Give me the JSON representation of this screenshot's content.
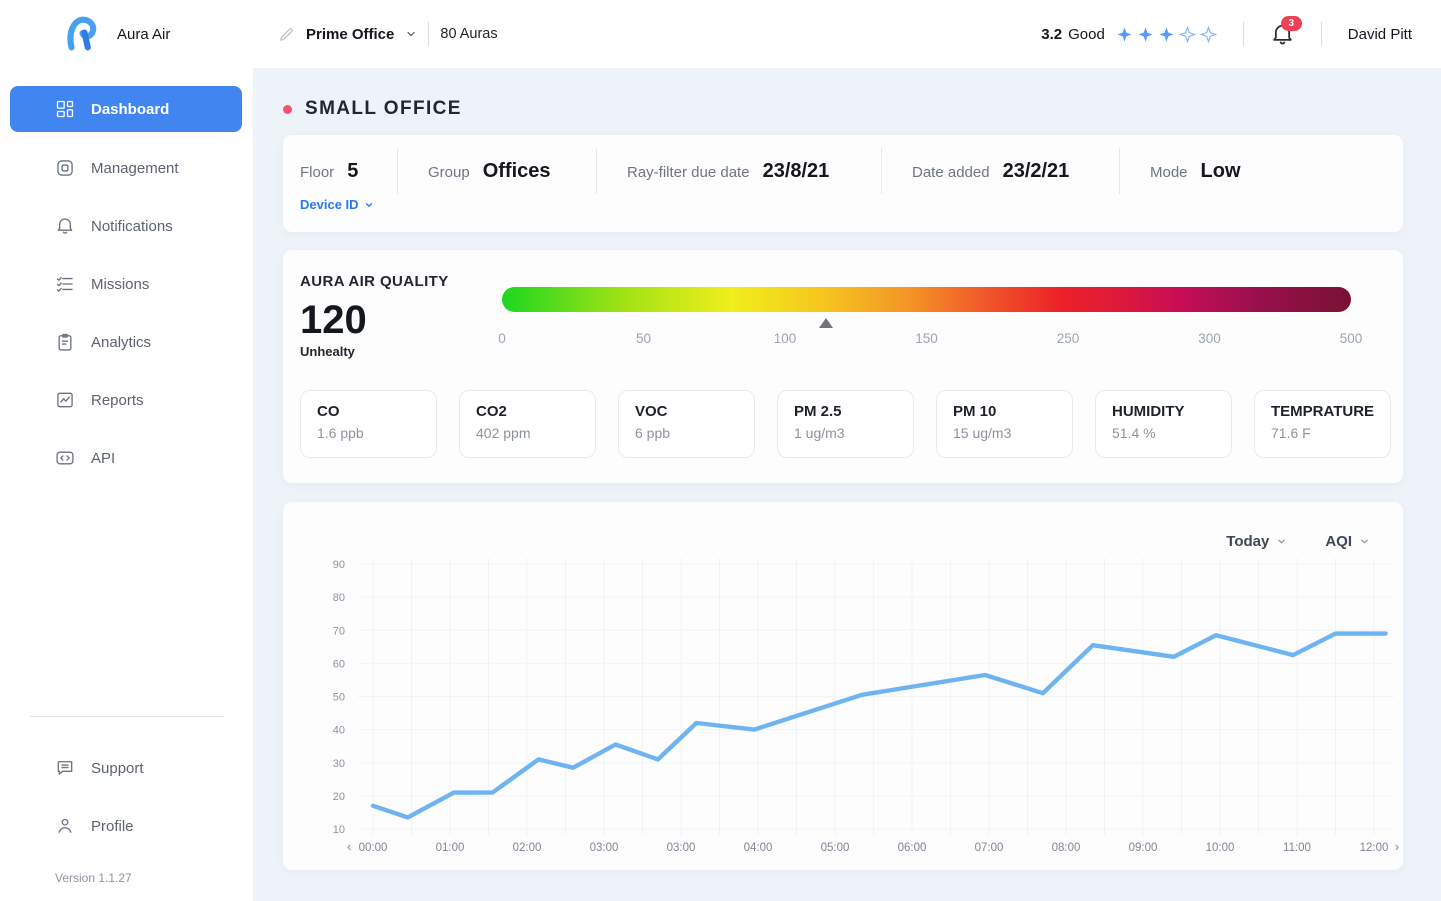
{
  "colors": {
    "accent_blue": "#4186f0",
    "line_blue": "#6fb4f2",
    "badge_red": "#ef4056",
    "title_dot_red": "#f2536d",
    "device_id_blue": "#2979f2",
    "star_blue": "#5b9bf8",
    "page_bg": "#eef3f9"
  },
  "header": {
    "brand": "Aura Air",
    "site": {
      "name": "Prime Office"
    },
    "device_count": "80 Auras",
    "score": {
      "value": "3.2",
      "label": "Good",
      "stars_filled": 3,
      "stars_total": 5
    },
    "notifications": {
      "badge": "3"
    },
    "user": {
      "name": "David Pitt"
    }
  },
  "sidebar": {
    "items": [
      {
        "label": "Dashboard",
        "icon": "dashboard",
        "active": true
      },
      {
        "label": "Management",
        "icon": "management",
        "active": false
      },
      {
        "label": "Notifications",
        "icon": "bell",
        "active": false
      },
      {
        "label": "Missions",
        "icon": "missions",
        "active": false
      },
      {
        "label": "Analytics",
        "icon": "analytics",
        "active": false
      },
      {
        "label": "Reports",
        "icon": "reports",
        "active": false
      },
      {
        "label": "API",
        "icon": "api",
        "active": false
      }
    ],
    "footer_items": [
      {
        "label": "Support",
        "icon": "support"
      },
      {
        "label": "Profile",
        "icon": "profile"
      }
    ],
    "version": "Version 1.1.27"
  },
  "page": {
    "title": "SMALL OFFICE",
    "info": {
      "fields": [
        {
          "label": "Floor",
          "value": "5"
        },
        {
          "label": "Group",
          "value": "Offices"
        },
        {
          "label": "Ray-filter due date",
          "value": "23/8/21"
        },
        {
          "label": "Date added",
          "value": "23/2/21"
        },
        {
          "label": "Mode",
          "value": "Low"
        }
      ],
      "device_id_label": "Device ID"
    },
    "aqi": {
      "section_title": "AURA AIR QUALITY",
      "value": "120",
      "status": "Unhealty",
      "scale_labels": [
        "0",
        "50",
        "100",
        "150",
        "250",
        "300",
        "500"
      ],
      "marker_percent": 38.2,
      "gradient_stops": [
        "#1ed621 0%",
        "#9fe214 14%",
        "#f0ee1b 27%",
        "#f6c51f 38%",
        "#f49426 48%",
        "#f1562a 57%",
        "#ec2028 66%",
        "#e01a39 72%",
        "#c70d56 80%",
        "#99104d 89%",
        "#7a1134 100%"
      ],
      "metrics": [
        {
          "name": "CO",
          "value": "1.6 ppb"
        },
        {
          "name": "CO2",
          "value": "402 ppm"
        },
        {
          "name": "VOC",
          "value": "6 ppb"
        },
        {
          "name": "PM 2.5",
          "value": "1 ug/m3"
        },
        {
          "name": "PM 10",
          "value": "15 ug/m3"
        },
        {
          "name": "HUMIDITY",
          "value": "51.4 %"
        },
        {
          "name": "TEMPRATURE",
          "value": "71.6 F"
        }
      ]
    },
    "chart_controls": {
      "range": "Today",
      "metric": "AQI"
    }
  },
  "chart_data": {
    "type": "line",
    "title": "AQI - Today",
    "x_ticks": [
      "00:00",
      "01:00",
      "02:00",
      "03:00",
      "03:00",
      "04:00",
      "05:00",
      "06:00",
      "07:00",
      "08:00",
      "09:00",
      "10:00",
      "11:00",
      "12:00"
    ],
    "y_ticks": [
      90,
      80,
      70,
      60,
      50,
      40,
      30,
      20,
      10
    ],
    "ylim": [
      10,
      90
    ],
    "grid": true,
    "legend": "none",
    "nav_prev": "‹",
    "nav_next": "›",
    "series": [
      {
        "name": "AQI",
        "color": "#6fb4f2",
        "points_x_tick_index": [
          [
            0,
            17
          ],
          [
            0.45,
            13.5
          ],
          [
            1.05,
            21
          ],
          [
            1.55,
            21
          ],
          [
            2.15,
            31
          ],
          [
            2.6,
            28.5
          ],
          [
            3.15,
            35.5
          ],
          [
            3.7,
            31
          ],
          [
            4.2,
            42
          ],
          [
            4.95,
            40
          ],
          [
            6.35,
            50.5
          ],
          [
            7.95,
            56.5
          ],
          [
            8.7,
            51
          ],
          [
            9.35,
            65.5
          ],
          [
            10.4,
            62
          ],
          [
            10.95,
            68.5
          ],
          [
            11.95,
            62.5
          ],
          [
            12.5,
            69
          ],
          [
            13.15,
            69
          ]
        ]
      }
    ]
  }
}
